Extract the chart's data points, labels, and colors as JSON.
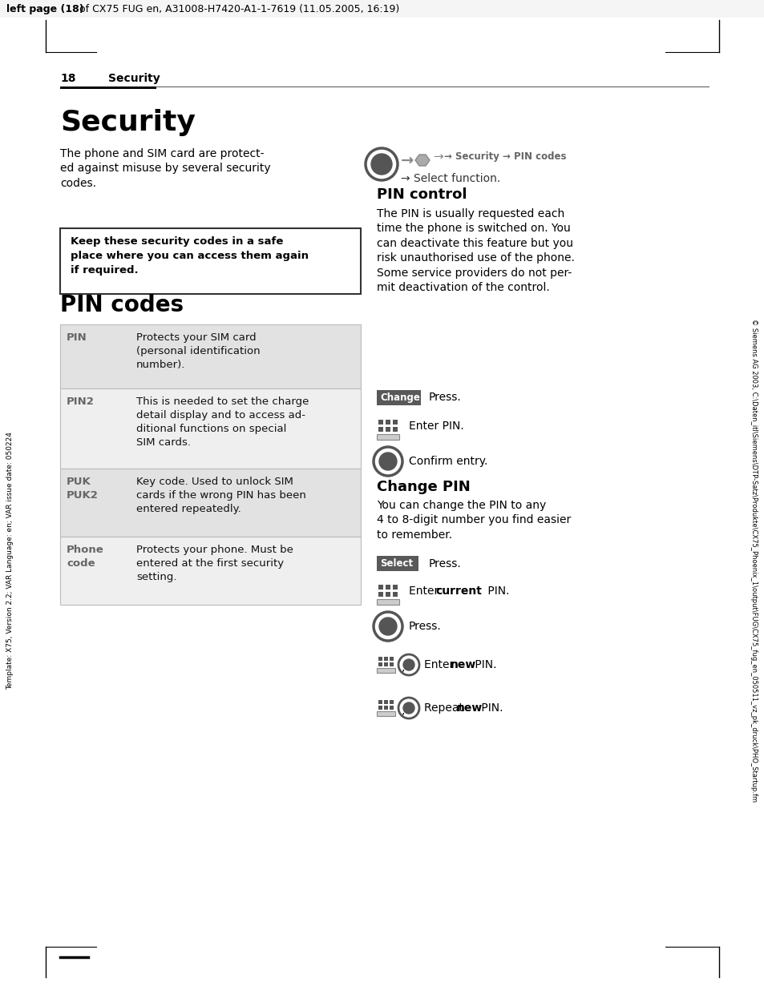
{
  "header_text_bold": "left page (18)",
  "header_text_normal": " of CX75 FUG en, A31008-H7420-A1-1-7619 (11.05.2005, 16:19)",
  "page_number": "18",
  "page_section": "Security",
  "left_sidebar": "Template: X75, Version 2.2; VAR Language: en; VAR issue date: 050224",
  "right_sidebar": "© Siemens AG 2003, C:\\Daten_itl\\Siemens\\DTP-Satz\\Produkte\\CX75_Phoenix_1\\output\\FUG\\CX75_fug_en_050511_vz_pk_druck\\PHO_Startup.fm",
  "section_title": "Security",
  "intro_text": "The phone and SIM card are protect-\ned against misuse by several security\ncodes.",
  "warning_text_bold": "Keep these security codes in a safe\nplace where you can access them again\nif required.",
  "pin_codes_title": "PIN codes",
  "pin_control_title": "PIN control",
  "pin_control_text": "The PIN is usually requested each\ntime the phone is switched on. You\ncan deactivate this feature but you\nrisk unauthorised use of the phone.\nSome service providers do not per-\nmit deactivation of the control.",
  "change_button_text": "Change",
  "change_button_color": "#595959",
  "select_button_text": "Select",
  "select_button_color": "#595959",
  "change_pin_title": "Change PIN",
  "change_pin_text": "You can change the PIN to any\n4 to 8-digit number you find easier\nto remember.",
  "background_color": "#ffffff",
  "text_color": "#000000",
  "row_bg_colors": [
    "#e2e2e2",
    "#efefef",
    "#e2e2e2",
    "#efefef"
  ],
  "table_rows": [
    {
      "key": "PIN",
      "value": "Protects your SIM card\n(personal identification\nnumber)."
    },
    {
      "key": "PIN2",
      "value": "This is needed to set the charge\ndetail display and to access ad-\nditional functions on special\nSIM cards."
    },
    {
      "key": "PUK\nPUK2",
      "value": "Key code. Used to unlock SIM\ncards if the wrong PIN has been\nentered repeatedly."
    },
    {
      "key": "Phone\ncode",
      "value": "Protects your phone. Must be\nentered at the first security\nsetting."
    }
  ],
  "nav_line1_bold": "→ Security → PIN codes",
  "nav_line2": "→ Select function."
}
